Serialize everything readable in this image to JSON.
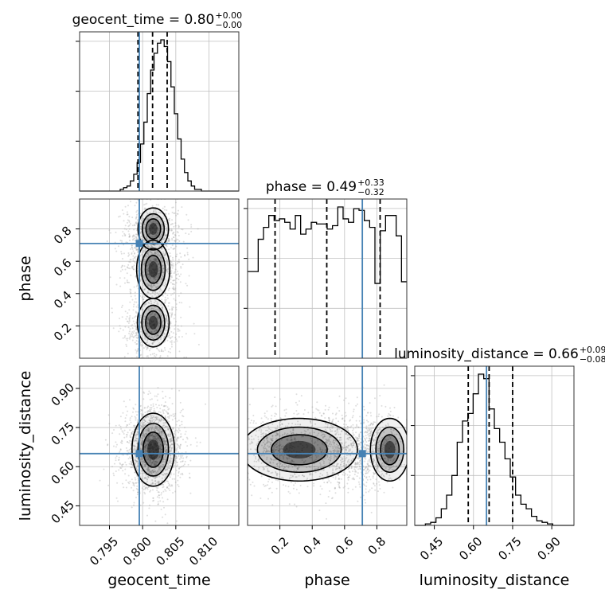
{
  "chart_data": {
    "type": "corner",
    "parameters": [
      "geocent_time",
      "phase",
      "luminosity_distance"
    ],
    "truths": {
      "geocent_time": 0.7995,
      "phase": 0.71,
      "luminosity_distance": 0.65
    },
    "colors": {
      "truth": "#4682b4",
      "hist": "#000000",
      "grid": "#c0c0c0",
      "points": "#a0a0a0",
      "contour_fill": "#000000"
    },
    "grid": true,
    "titles": {
      "geocent_time": {
        "text": "geocent_time = 0.80",
        "plus": "+0.00",
        "minus": "−0.00"
      },
      "phase": {
        "text": "phase = 0.49",
        "plus": "+0.33",
        "minus": "−0.32"
      },
      "luminosity_distance": {
        "text": "luminosity_distance = 0.66",
        "plus": "+0.09",
        "minus": "−0.08"
      }
    },
    "axis_labels": {
      "geocent_time": "geocent_time",
      "phase": "phase",
      "luminosity_distance": "luminosity_distance"
    },
    "axes": {
      "geocent_time": {
        "range": [
          0.7905,
          0.8145
        ],
        "ticks": [
          0.795,
          0.8,
          0.805,
          0.81
        ],
        "tick_labels": [
          "0.795",
          "0.800",
          "0.805",
          "0.810"
        ]
      },
      "phase": {
        "range": [
          0.0,
          0.985
        ],
        "ticks": [
          0.2,
          0.4,
          0.6,
          0.8
        ],
        "tick_labels": [
          "0.2",
          "0.4",
          "0.6",
          "0.8"
        ]
      },
      "luminosity_distance": {
        "range": [
          0.375,
          0.985
        ],
        "ticks": [
          0.45,
          0.6,
          0.75,
          0.9
        ],
        "tick_labels": [
          "0.45",
          "0.60",
          "0.75",
          "0.90"
        ]
      }
    },
    "quantiles": {
      "geocent_time": [
        0.7993,
        0.8015,
        0.8037
      ],
      "phase": [
        0.17,
        0.49,
        0.82
      ],
      "luminosity_distance": [
        0.58,
        0.66,
        0.75
      ]
    },
    "histograms": {
      "geocent_time": {
        "edges": [
          0.7905,
          0.79101,
          0.79152,
          0.79203,
          0.79254,
          0.79305,
          0.79356,
          0.79407,
          0.79458,
          0.79509,
          0.7956,
          0.79611,
          0.79662,
          0.79713,
          0.79764,
          0.79815,
          0.79866,
          0.79917,
          0.79968,
          0.80019,
          0.8007,
          0.80121,
          0.80172,
          0.80223,
          0.80274,
          0.80325,
          0.80376,
          0.80427,
          0.80478,
          0.80529,
          0.8058,
          0.80631,
          0.80682,
          0.80733,
          0.80784,
          0.80835,
          0.80886,
          0.80937,
          0.80988,
          0.81039,
          0.8109,
          0.81141,
          0.81192,
          0.81243,
          0.81294,
          0.81345,
          0.81396,
          0.81447
        ],
        "counts": [
          0,
          0,
          0,
          0,
          0,
          0,
          0,
          0,
          0,
          0,
          0,
          0,
          1,
          2,
          3,
          6,
          10,
          17,
          28,
          41,
          58,
          72,
          82,
          88,
          90,
          86,
          77,
          62,
          46,
          31,
          19,
          11,
          6,
          3,
          1,
          1,
          0,
          0,
          0,
          0,
          0,
          0,
          0,
          0,
          0,
          0,
          0
        ]
      },
      "phase": {
        "edges": [
          0.0,
          0.0328,
          0.0657,
          0.0985,
          0.1313,
          0.1642,
          0.197,
          0.2298,
          0.2627,
          0.2955,
          0.3283,
          0.3612,
          0.394,
          0.4268,
          0.4597,
          0.4925,
          0.5253,
          0.5582,
          0.591,
          0.6238,
          0.6567,
          0.6895,
          0.7223,
          0.7552,
          0.788,
          0.8208,
          0.8537,
          0.8865,
          0.9193,
          0.9522,
          0.985
        ],
        "counts": [
          51,
          51,
          70,
          77,
          84,
          81,
          82,
          80,
          76,
          84,
          73,
          76,
          80,
          79,
          79,
          76,
          78,
          89,
          82,
          80,
          88,
          87,
          81,
          77,
          44,
          75,
          84,
          84,
          72,
          45
        ]
      },
      "luminosity_distance": {
        "edges": [
          0.375,
          0.3953,
          0.4157,
          0.436,
          0.4563,
          0.4767,
          0.497,
          0.5173,
          0.5377,
          0.558,
          0.5783,
          0.5987,
          0.619,
          0.6393,
          0.6597,
          0.68,
          0.7003,
          0.7207,
          0.741,
          0.7613,
          0.7817,
          0.802,
          0.8223,
          0.8427,
          0.863,
          0.8833,
          0.9037,
          0.924,
          0.9443,
          0.9647,
          0.985
        ],
        "counts": [
          0,
          0,
          1,
          2,
          5,
          11,
          20,
          33,
          55,
          69,
          74,
          87,
          100,
          97,
          77,
          64,
          55,
          44,
          32,
          20,
          14,
          11,
          6,
          3,
          2,
          1,
          0,
          0,
          0,
          0
        ]
      }
    }
  }
}
